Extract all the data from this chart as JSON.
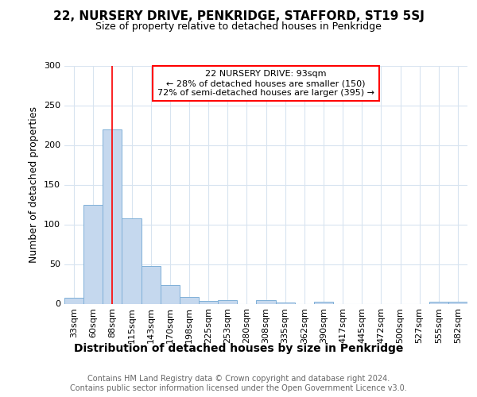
{
  "title": "22, NURSERY DRIVE, PENKRIDGE, STAFFORD, ST19 5SJ",
  "subtitle": "Size of property relative to detached houses in Penkridge",
  "xlabel": "Distribution of detached houses by size in Penkridge",
  "ylabel": "Number of detached properties",
  "categories": [
    "33sqm",
    "60sqm",
    "88sqm",
    "115sqm",
    "143sqm",
    "170sqm",
    "198sqm",
    "225sqm",
    "253sqm",
    "280sqm",
    "308sqm",
    "335sqm",
    "362sqm",
    "390sqm",
    "417sqm",
    "445sqm",
    "472sqm",
    "500sqm",
    "527sqm",
    "555sqm",
    "582sqm"
  ],
  "values": [
    8,
    125,
    220,
    108,
    48,
    24,
    9,
    4,
    5,
    0,
    5,
    2,
    0,
    3,
    0,
    0,
    0,
    0,
    0,
    3,
    3
  ],
  "bar_color": "#c5d8ee",
  "bar_edge_color": "#7fb0d8",
  "vline_x_index": 2,
  "vline_color": "red",
  "annotation_line1": "22 NURSERY DRIVE: 93sqm",
  "annotation_line2": "← 28% of detached houses are smaller (150)",
  "annotation_line3": "72% of semi-detached houses are larger (395) →",
  "footer_text": "Contains HM Land Registry data © Crown copyright and database right 2024.\nContains public sector information licensed under the Open Government Licence v3.0.",
  "ylim": [
    0,
    300
  ],
  "yticks": [
    0,
    50,
    100,
    150,
    200,
    250,
    300
  ],
  "bg_color": "#ffffff",
  "grid_color": "#d8e4f0",
  "title_fontsize": 11,
  "subtitle_fontsize": 9,
  "ylabel_fontsize": 9,
  "xlabel_fontsize": 10,
  "tick_fontsize": 8,
  "ann_fontsize": 8,
  "footer_fontsize": 7
}
